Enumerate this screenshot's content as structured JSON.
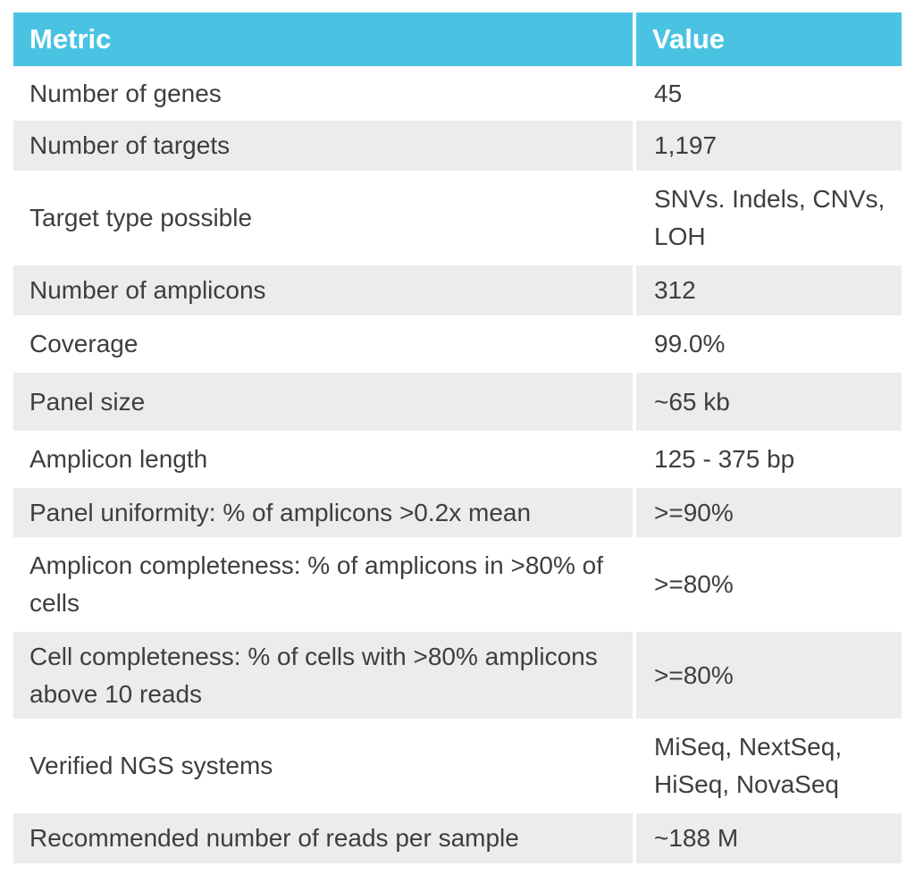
{
  "header": {
    "metric": "Metric",
    "value": "Value"
  },
  "rows": [
    {
      "metric": "Number of genes",
      "value": "45"
    },
    {
      "metric": "Number of targets",
      "value": "1,197"
    },
    {
      "metric": "Target type possible",
      "value": "SNVs. Indels, CNVs, LOH"
    },
    {
      "metric": "Number of amplicons",
      "value": "312"
    },
    {
      "metric": "Coverage",
      "value": "99.0%"
    },
    {
      "metric": "Panel size",
      "value": "~65 kb"
    },
    {
      "metric": "Amplicon length",
      "value": "125 - 375 bp"
    },
    {
      "metric": "Panel uniformity: % of amplicons >0.2x mean",
      "value": ">=90%"
    },
    {
      "metric": "Amplicon completeness: % of amplicons in >80% of cells",
      "value": ">=80%"
    },
    {
      "metric": "Cell completeness: % of cells with >80% amplicons above 10 reads",
      "value": ">=80%"
    },
    {
      "metric": "Verified NGS systems",
      "value": "MiSeq, NextSeq, HiSeq, NovaSeq"
    },
    {
      "metric": "Recommended number of reads per sample",
      "value": "~188 M"
    }
  ],
  "colors": {
    "header_bg": "#4ac3e2",
    "header_text": "#ffffff",
    "row_shade": "#ececec",
    "row_plain": "#ffffff"
  }
}
